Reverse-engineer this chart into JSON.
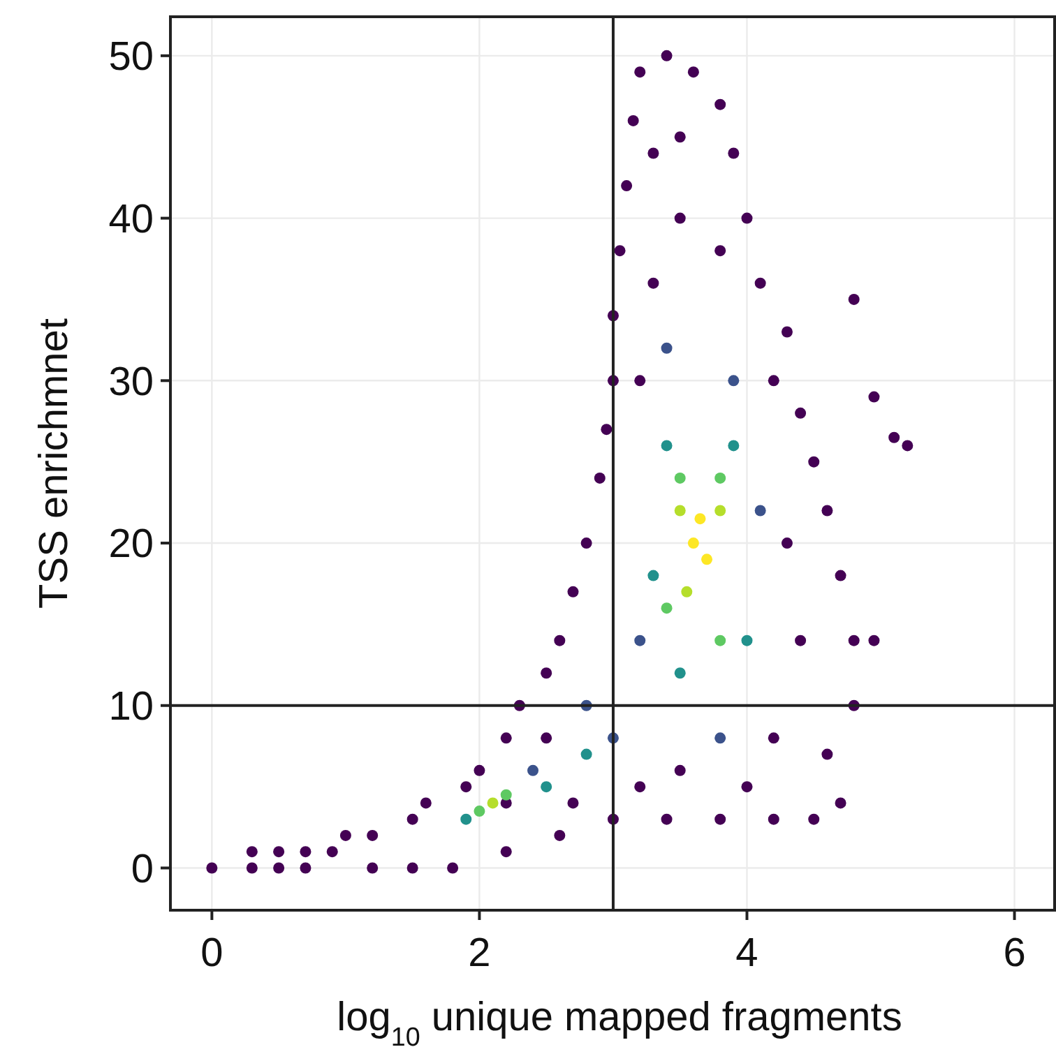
{
  "chart_data": {
    "type": "scatter",
    "xlabel": "log$_{10}$ unique mapped fragments",
    "ylabel": "TSS enrichmnet",
    "xlim": [
      -0.31,
      6.3
    ],
    "ylim": [
      -2.6,
      52.4
    ],
    "xticks": [
      0,
      2,
      4,
      6
    ],
    "yticks": [
      0,
      10,
      20,
      30,
      40,
      50
    ],
    "grid": true,
    "marker": "circle",
    "ref_lines": [
      {
        "axis": "x",
        "value": 3,
        "color": "#222222"
      },
      {
        "axis": "y",
        "value": 10,
        "color": "#222222"
      }
    ],
    "series": [
      {
        "color": "#440154",
        "x": [
          0,
          0.3,
          0.3,
          0.5,
          0.5,
          0.7,
          0.7,
          0.9,
          1.0,
          1.2,
          1.2,
          1.5,
          1.5,
          1.8,
          1.6,
          1.9,
          2.0,
          2.2,
          2.3,
          2.5,
          2.6,
          2.7,
          2.8,
          2.9,
          2.95,
          3.0,
          3.0,
          3.05,
          3.1,
          3.15,
          3.2,
          3.4,
          3.6,
          3.8,
          3.9,
          4.0,
          4.1,
          4.3,
          4.4,
          4.5,
          4.6,
          4.7,
          4.8,
          4.8,
          4.6,
          4.7,
          4.5,
          4.2,
          3.8,
          3.4,
          3.0,
          2.6,
          2.2,
          4.8,
          5.1,
          5.2,
          4.95,
          4.95,
          3.3,
          3.5,
          3.5,
          3.3,
          3.8,
          3.2,
          4.2,
          4.3,
          4.4,
          4.2,
          3.5,
          4.0,
          3.2,
          2.7,
          2.5,
          2.2
        ],
        "values": [
          0,
          0,
          1,
          0,
          1,
          0,
          1,
          1,
          2,
          0,
          2,
          0,
          3,
          0,
          4,
          5,
          6,
          8,
          10,
          12,
          14,
          17,
          20,
          24,
          27,
          30,
          34,
          38,
          42,
          46,
          49,
          50,
          49,
          47,
          44,
          40,
          36,
          33,
          28,
          25,
          22,
          18,
          14,
          10,
          7,
          4,
          3,
          3,
          3,
          3,
          3,
          2,
          1,
          35,
          26.5,
          26,
          29,
          14,
          44,
          45,
          40,
          36,
          38,
          30,
          30,
          20,
          14,
          8,
          6,
          5,
          5,
          4,
          8,
          4
        ]
      },
      {
        "color": "#3b528b",
        "x": [
          3.4,
          3.9,
          4.1,
          3.2,
          3.8,
          2.8,
          3.0,
          2.4
        ],
        "values": [
          32,
          30,
          22,
          14,
          8,
          10,
          8,
          6
        ]
      },
      {
        "color": "#21918c",
        "x": [
          3.4,
          3.9,
          3.3,
          4.0,
          3.5,
          2.8,
          2.5,
          1.9
        ],
        "values": [
          26,
          26,
          18,
          14,
          12,
          7,
          5,
          3
        ]
      },
      {
        "color": "#5ec962",
        "x": [
          3.5,
          3.8,
          3.4,
          3.8,
          2.2,
          2.0
        ],
        "values": [
          24,
          24,
          16,
          14,
          4.5,
          3.5
        ]
      },
      {
        "color": "#b5de2b",
        "x": [
          3.5,
          3.8,
          3.55,
          2.1
        ],
        "values": [
          22,
          22,
          17,
          4
        ]
      },
      {
        "color": "#fde725",
        "x": [
          3.6,
          3.7,
          3.65
        ],
        "values": [
          20,
          19,
          21.5
        ]
      }
    ]
  }
}
